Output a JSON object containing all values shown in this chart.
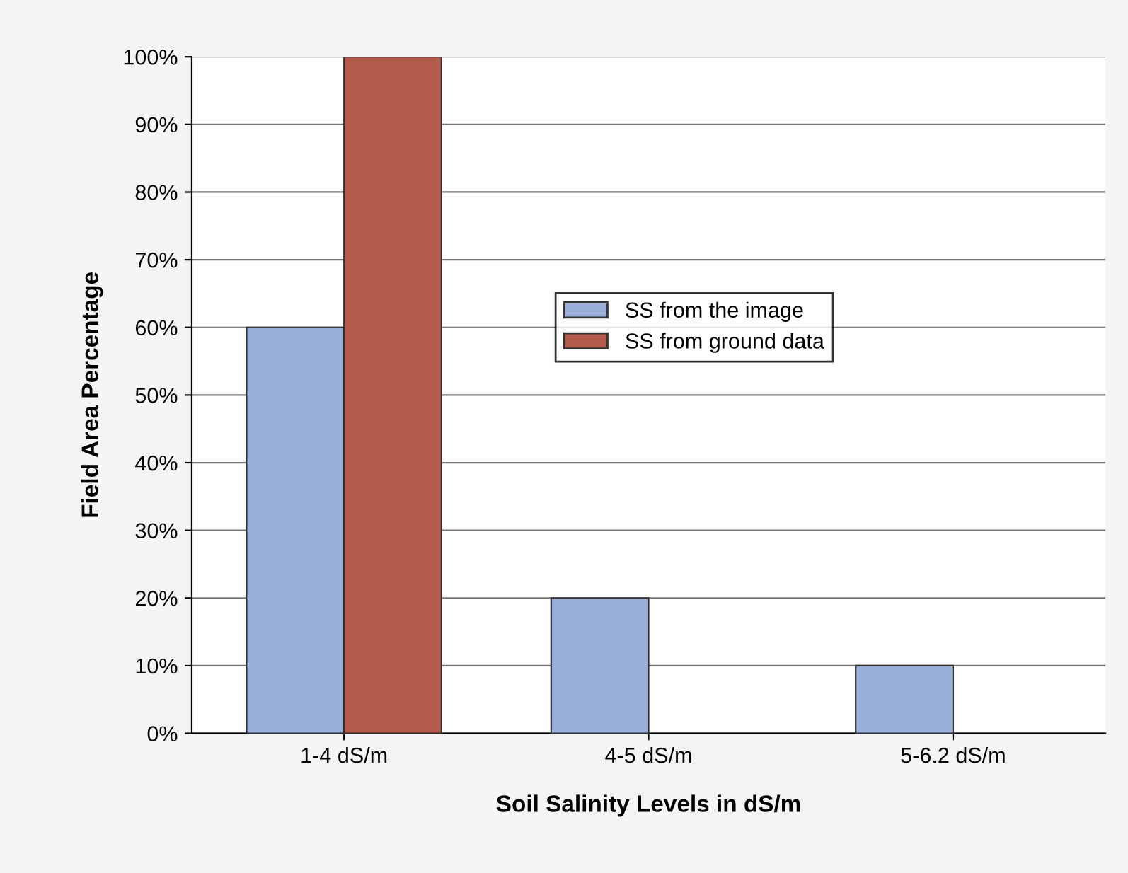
{
  "chart_data": {
    "type": "bar",
    "xlabel": "Soil Salinity Levels in dS/m",
    "ylabel": "Field Area Percentage",
    "categories": [
      "1-4 dS/m",
      "4-5 dS/m",
      "5-6.2 dS/m"
    ],
    "series": [
      {
        "name": "SS from the image",
        "color": "#9aafd9",
        "values": [
          60,
          20,
          10
        ]
      },
      {
        "name": "SS from ground data",
        "color": "#b35a4c",
        "values": [
          100,
          null,
          null
        ]
      }
    ],
    "ylim": [
      0,
      100
    ],
    "yticks": [
      {
        "value": 0,
        "label": "0%"
      },
      {
        "value": 10,
        "label": "10%"
      },
      {
        "value": 20,
        "label": "20%"
      },
      {
        "value": 30,
        "label": "30%"
      },
      {
        "value": 40,
        "label": "40%"
      },
      {
        "value": 50,
        "label": "50%"
      },
      {
        "value": 60,
        "label": "60%"
      },
      {
        "value": 70,
        "label": "70%"
      },
      {
        "value": 80,
        "label": "80%"
      },
      {
        "value": 90,
        "label": "90%"
      },
      {
        "value": 100,
        "label": "100%"
      }
    ],
    "grid": "y",
    "legend": "center"
  }
}
